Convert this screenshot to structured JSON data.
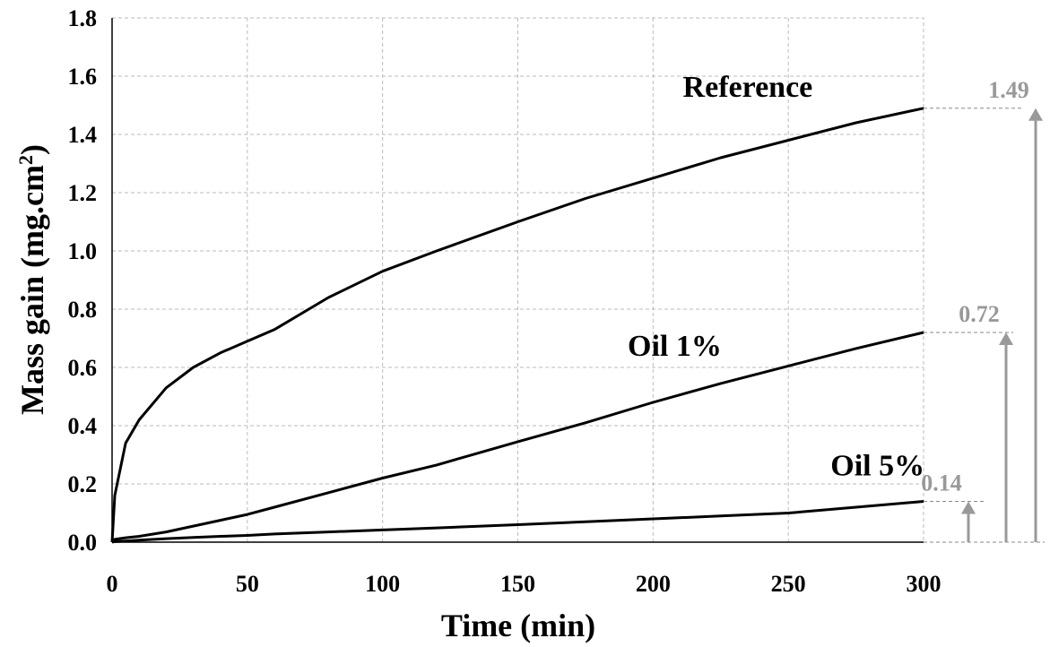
{
  "chart_data": {
    "type": "line",
    "title": "",
    "xlabel": "Time (min)",
    "ylabel": "Mass gain (mg.cm",
    "ylabel_sup": "2",
    "ylabel_close": ")",
    "xlim": [
      0,
      300
    ],
    "ylim": [
      0,
      1.8
    ],
    "xticks": [
      "0",
      "50",
      "100",
      "150",
      "200",
      "250",
      "300"
    ],
    "yticks": [
      "0.0",
      "0.2",
      "0.4",
      "0.6",
      "0.8",
      "1.0",
      "1.2",
      "1.4",
      "1.6",
      "1.8"
    ],
    "grid": true,
    "x": [
      0,
      1,
      5,
      10,
      20,
      30,
      40,
      50,
      60,
      80,
      100,
      120,
      150,
      175,
      200,
      225,
      250,
      275,
      300
    ],
    "series": [
      {
        "name": "Reference",
        "values": [
          0,
          0.16,
          0.34,
          0.42,
          0.53,
          0.6,
          0.65,
          0.69,
          0.73,
          0.84,
          0.93,
          1.0,
          1.1,
          1.18,
          1.25,
          1.32,
          1.38,
          1.44,
          1.49
        ]
      },
      {
        "name": "Oil 1%",
        "values": [
          0,
          0.01,
          0.015,
          0.02,
          0.035,
          0.055,
          0.075,
          0.095,
          0.12,
          0.17,
          0.22,
          0.265,
          0.345,
          0.41,
          0.48,
          0.545,
          0.605,
          0.665,
          0.72
        ]
      },
      {
        "name": "Oil 5%",
        "values": [
          0,
          0.002,
          0.004,
          0.007,
          0.012,
          0.016,
          0.02,
          0.023,
          0.028,
          0.035,
          0.042,
          0.049,
          0.06,
          0.07,
          0.08,
          0.09,
          0.1,
          0.12,
          0.14
        ]
      }
    ],
    "annotations": [
      {
        "series": "Reference",
        "text": "1.49",
        "value": 1.49
      },
      {
        "series": "Oil 1%",
        "text": "0.72",
        "value": 0.72
      },
      {
        "series": "Oil 5%",
        "text": "0.14",
        "value": 0.14
      }
    ],
    "colors": {
      "line": "#000000",
      "grid": "#bbbbbb",
      "annotation": "#999999"
    }
  }
}
